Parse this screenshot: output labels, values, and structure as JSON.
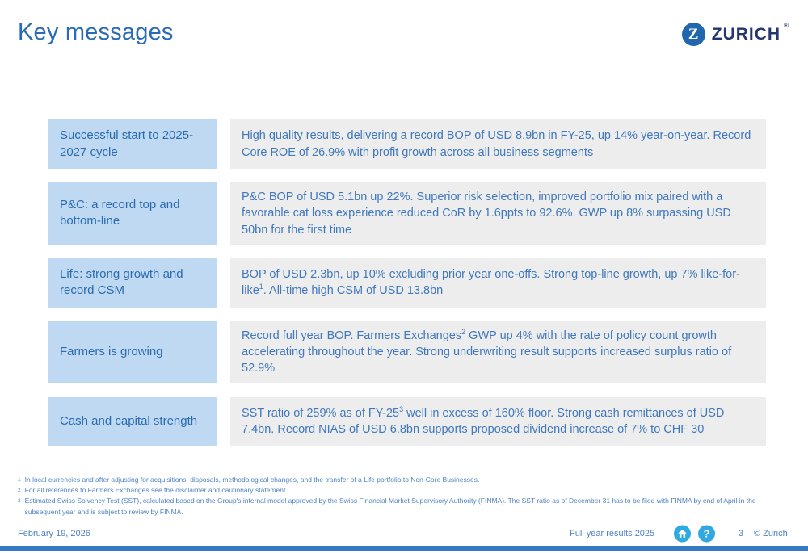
{
  "slide": {
    "title": "Key messages"
  },
  "logo": {
    "letter": "Z",
    "wordmark": "ZURICH",
    "registered": "®"
  },
  "colors": {
    "brand_blue": "#2167AE",
    "title_blue": "#2A6BB5",
    "label_box_bg": "#BFD9F2",
    "label_text": "#2A6BB0",
    "content_box_bg": "#EDEDED",
    "content_text": "#3F78BC",
    "footer_icon_cyan": "#2FA9E0",
    "bottom_bar_blue": "#3579C5"
  },
  "rows": [
    {
      "label": "Successful start to 2025-2027 cycle",
      "content_segments": [
        {
          "t": "High quality results, delivering a record BOP of USD 8.9bn in FY-25, up 14% year-on-year. Record Core ROE of 26.9% with profit growth across all business segments"
        }
      ]
    },
    {
      "label": "P&C: a record top and bottom-line",
      "content_segments": [
        {
          "t": "P&C BOP of USD 5.1bn up 22%. Superior risk selection, improved portfolio mix paired with a favorable cat loss experience reduced CoR by 1.6ppts to 92.6%. GWP up 8% surpassing USD 50bn for the first time"
        }
      ]
    },
    {
      "label": "Life: strong growth and record CSM",
      "content_segments": [
        {
          "t": "BOP of USD 2.3bn, up 10% excluding prior year one-offs. Strong top-line growth, up 7% like-for-like"
        },
        {
          "sup": "1"
        },
        {
          "t": ". All-time high CSM of USD 13.8bn"
        }
      ]
    },
    {
      "label": "Farmers is growing",
      "content_segments": [
        {
          "t": "Record full year BOP. Farmers Exchanges"
        },
        {
          "sup": "2"
        },
        {
          "t": " GWP up 4% with the rate of policy count growth accelerating throughout the year. Strong underwriting result supports increased surplus ratio of 52.9%"
        }
      ]
    },
    {
      "label": "Cash and capital strength",
      "content_segments": [
        {
          "t": "SST ratio of 259% as of FY-25"
        },
        {
          "sup": "3"
        },
        {
          "t": " well in excess of 160% floor. Strong cash remittances of USD 7.4bn. Record NIAS of USD 6.8bn supports proposed dividend increase of 7% to CHF 30"
        }
      ]
    }
  ],
  "footnotes": [
    {
      "marker": "1",
      "text": "In local currencies and after adjusting for acquisitions, disposals, methodological changes, and the transfer of a Life portfolio to Non-Core Businesses."
    },
    {
      "marker": "2",
      "text": "For all references to Farmers Exchanges see the disclaimer and cautionary statement."
    },
    {
      "marker": "3",
      "text": "Estimated Swiss Solvency Test (SST), calculated based on the Group's internal model approved by the Swiss Financial Market Supervisory Authority (FINMA). The SST ratio as of December 31 has to be filed with FINMA by end of April in the subsequent year and is subject to review by FINMA."
    }
  ],
  "footer": {
    "date": "February 19, 2026",
    "doc_title": "Full year results 2025",
    "page_number": "3",
    "copyright": "© Zurich",
    "help_glyph": "?"
  }
}
